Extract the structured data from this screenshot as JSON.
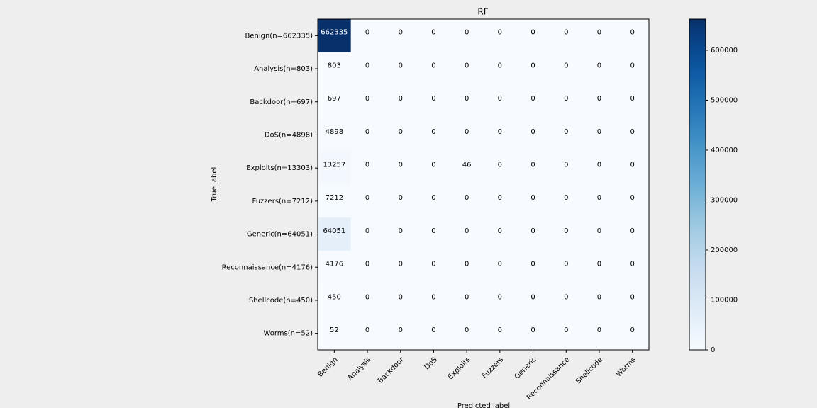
{
  "chart_data": {
    "type": "heatmap",
    "title": "RF",
    "xlabel": "Predicted label",
    "ylabel": "True label",
    "x_categories": [
      "Benign",
      "Analysis",
      "Backdoor",
      "DoS",
      "Exploits",
      "Fuzzers",
      "Generic",
      "Reconnaissance",
      "Shellcode",
      "Worms"
    ],
    "y_categories": [
      "Benign(n=662335)",
      "Analysis(n=803)",
      "Backdoor(n=697)",
      "DoS(n=4898)",
      "Exploits(n=13303)",
      "Fuzzers(n=7212)",
      "Generic(n=64051)",
      "Reconnaissance(n=4176)",
      "Shellcode(n=450)",
      "Worms(n=52)"
    ],
    "values": [
      [
        662335,
        0,
        0,
        0,
        0,
        0,
        0,
        0,
        0,
        0
      ],
      [
        803,
        0,
        0,
        0,
        0,
        0,
        0,
        0,
        0,
        0
      ],
      [
        697,
        0,
        0,
        0,
        0,
        0,
        0,
        0,
        0,
        0
      ],
      [
        4898,
        0,
        0,
        0,
        0,
        0,
        0,
        0,
        0,
        0
      ],
      [
        13257,
        0,
        0,
        0,
        46,
        0,
        0,
        0,
        0,
        0
      ],
      [
        7212,
        0,
        0,
        0,
        0,
        0,
        0,
        0,
        0,
        0
      ],
      [
        64051,
        0,
        0,
        0,
        0,
        0,
        0,
        0,
        0,
        0
      ],
      [
        4176,
        0,
        0,
        0,
        0,
        0,
        0,
        0,
        0,
        0
      ],
      [
        450,
        0,
        0,
        0,
        0,
        0,
        0,
        0,
        0,
        0
      ],
      [
        52,
        0,
        0,
        0,
        0,
        0,
        0,
        0,
        0,
        0
      ]
    ],
    "colormap": "Blues",
    "zlim": [
      0,
      662335
    ],
    "zticks": [
      0,
      100000,
      200000,
      300000,
      400000,
      500000,
      600000
    ]
  }
}
